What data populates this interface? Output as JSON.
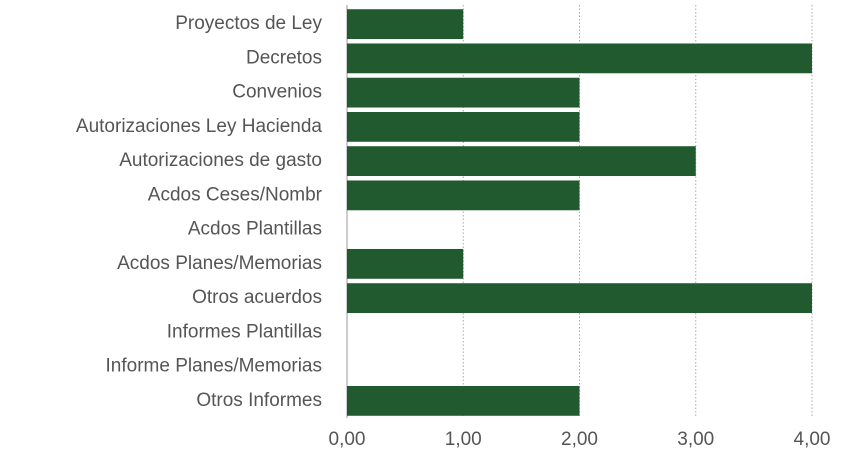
{
  "chart_data": {
    "type": "hbar",
    "categories": [
      "Proyectos de Ley",
      "Decretos",
      "Convenios",
      "Autorizaciones Ley Hacienda",
      "Autorizaciones de gasto",
      "Acdos Ceses/Nombr",
      "Acdos Plantillas",
      "Acdos Planes/Memorias",
      "Otros acuerdos",
      "Informes Plantillas",
      "Informe Planes/Memorias",
      "Otros Informes"
    ],
    "values": [
      1,
      4,
      2,
      2,
      3,
      2,
      0,
      1,
      4,
      0,
      0,
      2
    ],
    "color": "#215a2f",
    "xlim": [
      0,
      4
    ],
    "xticks": [
      {
        "value": 0,
        "label": "0,00"
      },
      {
        "value": 1,
        "label": "1,00"
      },
      {
        "value": 2,
        "label": "2,00"
      },
      {
        "value": 3,
        "label": "3,00"
      },
      {
        "value": 4,
        "label": "4,00"
      }
    ],
    "grid": true
  }
}
